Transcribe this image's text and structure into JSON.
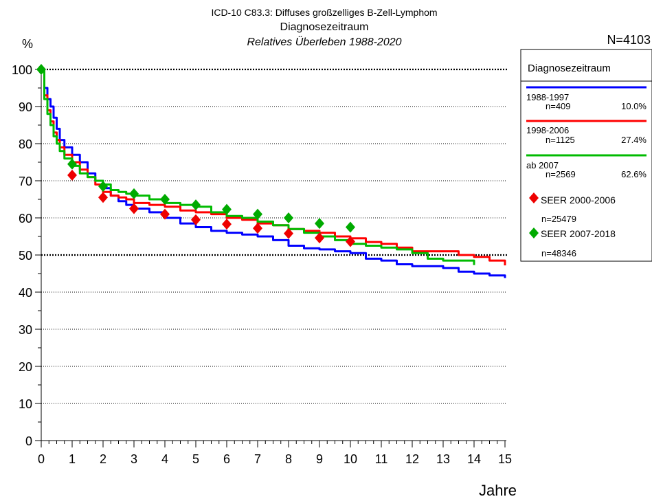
{
  "header": {
    "title_line1": "ICD-10 C83.3: Diffuses großzelliges B-Zell-Lymphom",
    "title_line2": "Diagnosezeitraum",
    "title_line3": "Relatives Überleben 1988-2020",
    "y_unit": "%",
    "total_n": "N=4103"
  },
  "legend": {
    "title": "Diagnosezeitraum",
    "entries": [
      {
        "label": "1988-1997",
        "n": "n=409",
        "pct": "10.0%",
        "color": "#0000ff"
      },
      {
        "label": "1998-2006",
        "n": "n=1125",
        "pct": "27.4%",
        "color": "#ff0000"
      },
      {
        "label": "ab 2007",
        "n": "n=2569",
        "pct": "62.6%",
        "color": "#00bb00"
      }
    ],
    "seer": [
      {
        "label": "SEER 2000-2006",
        "n": "n=25479",
        "color": "#ee0000"
      },
      {
        "label": "SEER 2007-2018",
        "n": "n=48346",
        "color": "#00aa00"
      }
    ]
  },
  "chart_data": {
    "type": "line",
    "xlabel": "Jahre",
    "ylabel": "%",
    "xlim": [
      0,
      15
    ],
    "ylim": [
      0,
      100
    ],
    "x_ticks": [
      0,
      1,
      2,
      3,
      4,
      5,
      6,
      7,
      8,
      9,
      10,
      11,
      12,
      13,
      14,
      15
    ],
    "y_ticks": [
      0,
      10,
      20,
      30,
      40,
      50,
      60,
      70,
      80,
      90,
      100
    ],
    "grid": "horizontal dotted",
    "legend_position": "right",
    "series": [
      {
        "name": "1988-1997",
        "color": "#0000ff",
        "points": [
          [
            0,
            100
          ],
          [
            0.1,
            95
          ],
          [
            0.2,
            92
          ],
          [
            0.3,
            90
          ],
          [
            0.4,
            87
          ],
          [
            0.5,
            84
          ],
          [
            0.6,
            81
          ],
          [
            0.75,
            79
          ],
          [
            1,
            77
          ],
          [
            1.25,
            75
          ],
          [
            1.5,
            72
          ],
          [
            1.75,
            70
          ],
          [
            2,
            68
          ],
          [
            2.25,
            66
          ],
          [
            2.5,
            64.5
          ],
          [
            2.75,
            63.5
          ],
          [
            3,
            62.5
          ],
          [
            3.5,
            61.5
          ],
          [
            4,
            60
          ],
          [
            4.5,
            58.5
          ],
          [
            5,
            57.5
          ],
          [
            5.5,
            56.5
          ],
          [
            6,
            56
          ],
          [
            6.5,
            55.5
          ],
          [
            7,
            55
          ],
          [
            7.5,
            54
          ],
          [
            8,
            52.5
          ],
          [
            8.5,
            51.8
          ],
          [
            9,
            51.5
          ],
          [
            9.5,
            51
          ],
          [
            10,
            50.5
          ],
          [
            10.5,
            49
          ],
          [
            11,
            48.5
          ],
          [
            11.5,
            47.5
          ],
          [
            12,
            47
          ],
          [
            12.5,
            47
          ],
          [
            13,
            46.5
          ],
          [
            13.5,
            45.5
          ],
          [
            14,
            45
          ],
          [
            14.5,
            44.5
          ],
          [
            15,
            43.8
          ]
        ]
      },
      {
        "name": "1998-2006",
        "color": "#ff0000",
        "points": [
          [
            0,
            100
          ],
          [
            0.1,
            93
          ],
          [
            0.2,
            89
          ],
          [
            0.3,
            86
          ],
          [
            0.4,
            83
          ],
          [
            0.5,
            81
          ],
          [
            0.6,
            79
          ],
          [
            0.75,
            77
          ],
          [
            1,
            75
          ],
          [
            1.25,
            73
          ],
          [
            1.5,
            71
          ],
          [
            1.75,
            69
          ],
          [
            2,
            67
          ],
          [
            2.25,
            66
          ],
          [
            2.5,
            65.5
          ],
          [
            2.75,
            65
          ],
          [
            3,
            64
          ],
          [
            3.5,
            63.5
          ],
          [
            4,
            63
          ],
          [
            4.5,
            62
          ],
          [
            5,
            61.5
          ],
          [
            5.5,
            61
          ],
          [
            6,
            60
          ],
          [
            6.5,
            59.5
          ],
          [
            7,
            58.5
          ],
          [
            7.5,
            58
          ],
          [
            8,
            57
          ],
          [
            8.5,
            56.5
          ],
          [
            9,
            56
          ],
          [
            9.5,
            55
          ],
          [
            10,
            54.5
          ],
          [
            10.5,
            53.5
          ],
          [
            11,
            53
          ],
          [
            11.5,
            52
          ],
          [
            12,
            51
          ],
          [
            12.5,
            51
          ],
          [
            13,
            51
          ],
          [
            13.5,
            50
          ],
          [
            14,
            49.5
          ],
          [
            14.5,
            48.5
          ],
          [
            15,
            47.2
          ]
        ]
      },
      {
        "name": "ab 2007",
        "color": "#00bb00",
        "points": [
          [
            0,
            100
          ],
          [
            0.1,
            92
          ],
          [
            0.2,
            88
          ],
          [
            0.3,
            85
          ],
          [
            0.4,
            82
          ],
          [
            0.5,
            80
          ],
          [
            0.6,
            78
          ],
          [
            0.75,
            76
          ],
          [
            1,
            74
          ],
          [
            1.25,
            72
          ],
          [
            1.5,
            71
          ],
          [
            1.75,
            70
          ],
          [
            2,
            69
          ],
          [
            2.25,
            67.5
          ],
          [
            2.5,
            67
          ],
          [
            2.75,
            66.5
          ],
          [
            3,
            66
          ],
          [
            3.5,
            65
          ],
          [
            4,
            64
          ],
          [
            4.5,
            63.5
          ],
          [
            5,
            63
          ],
          [
            5.5,
            61.5
          ],
          [
            6,
            60.5
          ],
          [
            6.5,
            60
          ],
          [
            7,
            59
          ],
          [
            7.5,
            58
          ],
          [
            8,
            57
          ],
          [
            8.5,
            56
          ],
          [
            9,
            55
          ],
          [
            9.5,
            54
          ],
          [
            10,
            53
          ],
          [
            10.5,
            52.5
          ],
          [
            11,
            52
          ],
          [
            11.5,
            51.5
          ],
          [
            12,
            50.5
          ],
          [
            12.5,
            49
          ],
          [
            13,
            48.5
          ],
          [
            13.5,
            48.5
          ],
          [
            14,
            47.3
          ]
        ]
      },
      {
        "name": "SEER 2000-2006",
        "color": "#ee0000",
        "marker": "diamond",
        "points": [
          [
            1,
            71.5
          ],
          [
            2,
            65.5
          ],
          [
            3,
            62.5
          ],
          [
            4,
            61
          ],
          [
            5,
            59.5
          ],
          [
            6,
            58.3
          ],
          [
            7,
            57.2
          ],
          [
            8,
            55.8
          ],
          [
            9,
            54.6
          ],
          [
            10,
            53.6
          ]
        ]
      },
      {
        "name": "SEER 2007-2018",
        "color": "#00aa00",
        "marker": "diamond",
        "points": [
          [
            0,
            100
          ],
          [
            1,
            74.5
          ],
          [
            2,
            68.5
          ],
          [
            3,
            66.5
          ],
          [
            4,
            65
          ],
          [
            5,
            63.5
          ],
          [
            6,
            62.3
          ],
          [
            7,
            61
          ],
          [
            8,
            60
          ],
          [
            9,
            58.5
          ],
          [
            10,
            57.5
          ]
        ]
      }
    ]
  }
}
